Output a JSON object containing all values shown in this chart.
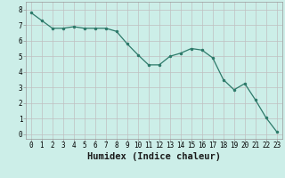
{
  "x": [
    0,
    1,
    2,
    3,
    4,
    5,
    6,
    7,
    8,
    9,
    10,
    11,
    12,
    13,
    14,
    15,
    16,
    17,
    18,
    19,
    20,
    21,
    22,
    23
  ],
  "y": [
    7.8,
    7.3,
    6.8,
    6.8,
    6.9,
    6.8,
    6.8,
    6.8,
    6.6,
    5.8,
    5.1,
    4.45,
    4.45,
    5.0,
    5.2,
    5.5,
    5.4,
    4.9,
    3.5,
    2.85,
    3.25,
    2.2,
    1.05,
    0.15
  ],
  "xlabel": "Humidex (Indice chaleur)",
  "xlim": [
    -0.5,
    23.5
  ],
  "ylim": [
    -0.3,
    8.5
  ],
  "line_color": "#2d7a6a",
  "marker_color": "#2d7a6a",
  "bg_color": "#cceee8",
  "grid_color": "#c0c0c0",
  "x_ticks": [
    0,
    1,
    2,
    3,
    4,
    5,
    6,
    7,
    8,
    9,
    10,
    11,
    12,
    13,
    14,
    15,
    16,
    17,
    18,
    19,
    20,
    21,
    22,
    23
  ],
  "y_ticks": [
    0,
    1,
    2,
    3,
    4,
    5,
    6,
    7,
    8
  ],
  "label_fontsize": 7.5,
  "tick_fontsize": 5.5
}
